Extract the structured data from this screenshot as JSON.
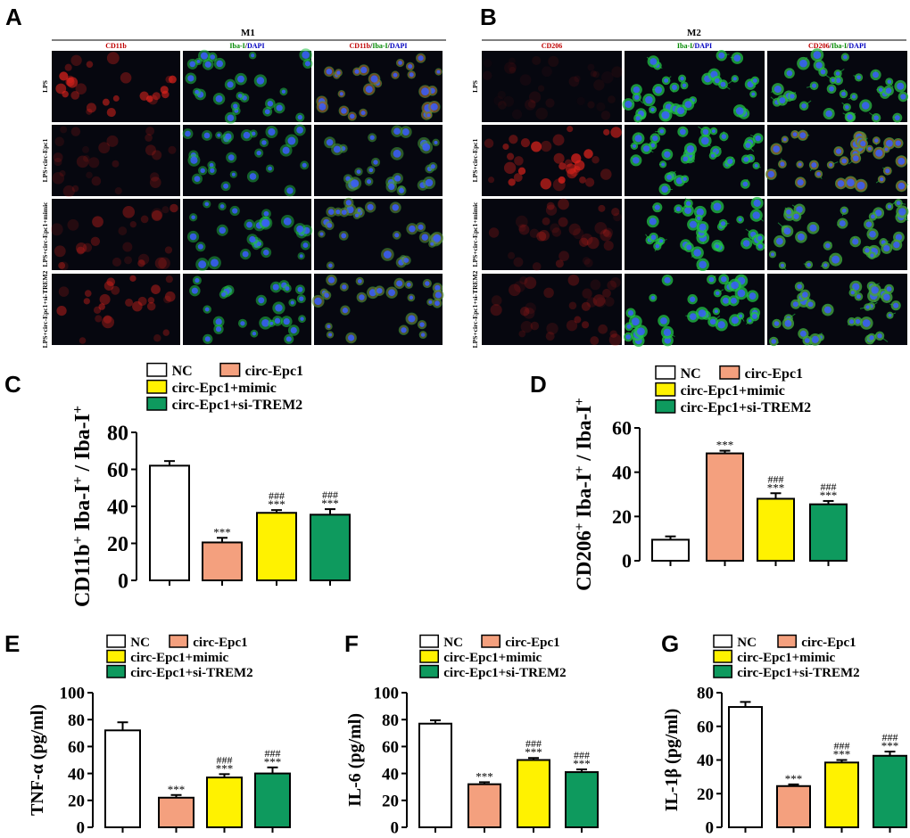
{
  "colors": {
    "nc": "#ffffff",
    "epc1": "#f4a07e",
    "mimic": "#fff200",
    "si": "#0e9a5e",
    "micro_bg": "#06070f",
    "red": "#e0231c",
    "green": "#22c248",
    "blue": "#3a5cff",
    "hdr_red": "#c00000",
    "hdr_green": "#008a00",
    "hdr_blue": "#0000c0"
  },
  "panels": {
    "A": {
      "letter": "A",
      "title": "M1",
      "columns": [
        {
          "marker": "CD11b",
          "parts": [
            {
              "t": "CD11b",
              "c": "red"
            }
          ]
        },
        {
          "marker": "Iba-I",
          "parts": [
            {
              "t": "Iba-I",
              "c": "green"
            },
            {
              "t": "/",
              "c": "black"
            },
            {
              "t": "DAPI",
              "c": "blue"
            }
          ]
        },
        {
          "marker": "CD11b",
          "parts": [
            {
              "t": "CD11b",
              "c": "red"
            },
            {
              "t": "/",
              "c": "black"
            },
            {
              "t": "Iba-I",
              "c": "green"
            },
            {
              "t": "/",
              "c": "black"
            },
            {
              "t": "DAPI",
              "c": "blue"
            }
          ]
        }
      ],
      "rows": [
        "LPS",
        "LPS+circ-Epc1",
        "LPS+circ-Epc1+mimic",
        "LPS+circ-Epc1+si-TREM2"
      ],
      "red_intensity": [
        0.85,
        0.3,
        0.45,
        0.55
      ],
      "green_intensity": [
        0.45,
        0.3,
        0.3,
        0.45
      ]
    },
    "B": {
      "letter": "B",
      "title": "M2",
      "columns": [
        {
          "marker": "CD206",
          "parts": [
            {
              "t": "CD206",
              "c": "red"
            }
          ]
        },
        {
          "marker": "Iba-I",
          "parts": [
            {
              "t": "Iba-I",
              "c": "green"
            },
            {
              "t": "/",
              "c": "black"
            },
            {
              "t": "DAPI",
              "c": "blue"
            }
          ]
        },
        {
          "marker": "CD206",
          "parts": [
            {
              "t": "CD206",
              "c": "red"
            },
            {
              "t": "/",
              "c": "black"
            },
            {
              "t": "Iba-I",
              "c": "green"
            },
            {
              "t": "/",
              "c": "black"
            },
            {
              "t": "DAPI",
              "c": "blue"
            }
          ]
        }
      ],
      "rows": [
        "LPS",
        "LPS+circ-Epc1",
        "LPS+circ-Epc1+mimic",
        "LPS+circ-Epc1+si-TREM2"
      ],
      "red_intensity": [
        0.12,
        0.9,
        0.35,
        0.35
      ],
      "green_intensity": [
        0.9,
        0.9,
        0.9,
        0.9
      ]
    }
  },
  "legend_labels": [
    "NC",
    "circ-Epc1",
    "circ-Epc1+mimic",
    "circ-Epc1+si-TREM2"
  ],
  "chart_data": [
    {
      "panel": "C",
      "type": "bar",
      "categories": [
        "NC",
        "circ-Epc1",
        "circ-Epc1+mimic",
        "circ-Epc1+si-TREM2"
      ],
      "values": [
        62,
        20.5,
        36.5,
        35.5
      ],
      "errors": [
        2.5,
        2.5,
        1.5,
        3
      ],
      "ylim": [
        0,
        80
      ],
      "yticks": [
        0,
        20,
        40,
        60,
        80
      ],
      "ylabel_parts": [
        [
          "CD11b",
          0
        ],
        [
          "+",
          1
        ],
        [
          " Iba-I",
          0
        ],
        [
          "+",
          1
        ],
        [
          " / Iba-I",
          0
        ],
        [
          "+",
          1
        ]
      ],
      "sig_star": [
        "",
        "***",
        "***",
        "***"
      ],
      "sig_hash": [
        "",
        "",
        "###",
        "###"
      ]
    },
    {
      "panel": "D",
      "type": "bar",
      "categories": [
        "NC",
        "circ-Epc1",
        "circ-Epc1+mimic",
        "circ-Epc1+si-TREM2"
      ],
      "values": [
        9.5,
        48.5,
        28,
        25.5
      ],
      "errors": [
        1.5,
        1.2,
        2.5,
        1.5
      ],
      "ylim": [
        0,
        60
      ],
      "yticks": [
        0,
        20,
        40,
        60
      ],
      "ylabel_parts": [
        [
          "CD206",
          0
        ],
        [
          "+",
          1
        ],
        [
          " Iba-I",
          0
        ],
        [
          "+",
          1
        ],
        [
          " / Iba-I",
          0
        ],
        [
          "+",
          1
        ]
      ],
      "sig_star": [
        "",
        "***",
        "***",
        "***"
      ],
      "sig_hash": [
        "",
        "",
        "###",
        "###"
      ]
    },
    {
      "panel": "E",
      "type": "bar",
      "categories": [
        "NC",
        "circ-Epc1",
        "circ-Epc1+mimic",
        "circ-Epc1+si-TREM2"
      ],
      "values": [
        72,
        22,
        37,
        40
      ],
      "errors": [
        6,
        2,
        2.5,
        4.5
      ],
      "ylim": [
        0,
        100
      ],
      "yticks": [
        0,
        20,
        40,
        60,
        80,
        100
      ],
      "ylabel": "TNF-α  (pg/ml)",
      "sig_star": [
        "",
        "***",
        "***",
        "***"
      ],
      "sig_hash": [
        "",
        "",
        "###",
        "###"
      ]
    },
    {
      "panel": "F",
      "type": "bar",
      "categories": [
        "NC",
        "circ-Epc1",
        "circ-Epc1+mimic",
        "circ-Epc1+si-TREM2"
      ],
      "values": [
        77,
        32,
        50,
        41
      ],
      "errors": [
        2.5,
        1.5,
        1.5,
        2
      ],
      "ylim": [
        0,
        100
      ],
      "yticks": [
        0,
        20,
        40,
        60,
        80,
        100
      ],
      "ylabel": "IL-6 (pg/ml)",
      "sig_star": [
        "",
        "***",
        "***",
        "***"
      ],
      "sig_hash": [
        "",
        "",
        "###",
        "###"
      ]
    },
    {
      "panel": "G",
      "type": "bar",
      "categories": [
        "NC",
        "circ-Epc1",
        "circ-Epc1+mimic",
        "circ-Epc1+si-TREM2"
      ],
      "values": [
        71.5,
        24.5,
        38.5,
        42.5
      ],
      "errors": [
        3,
        1,
        1.5,
        2.5
      ],
      "ylim": [
        0,
        80
      ],
      "yticks": [
        0,
        20,
        40,
        60,
        80
      ],
      "ylabel": "IL-1β  (pg/ml)",
      "sig_star": [
        "",
        "***",
        "***",
        "***"
      ],
      "sig_hash": [
        "",
        "",
        "###",
        "###"
      ]
    }
  ]
}
